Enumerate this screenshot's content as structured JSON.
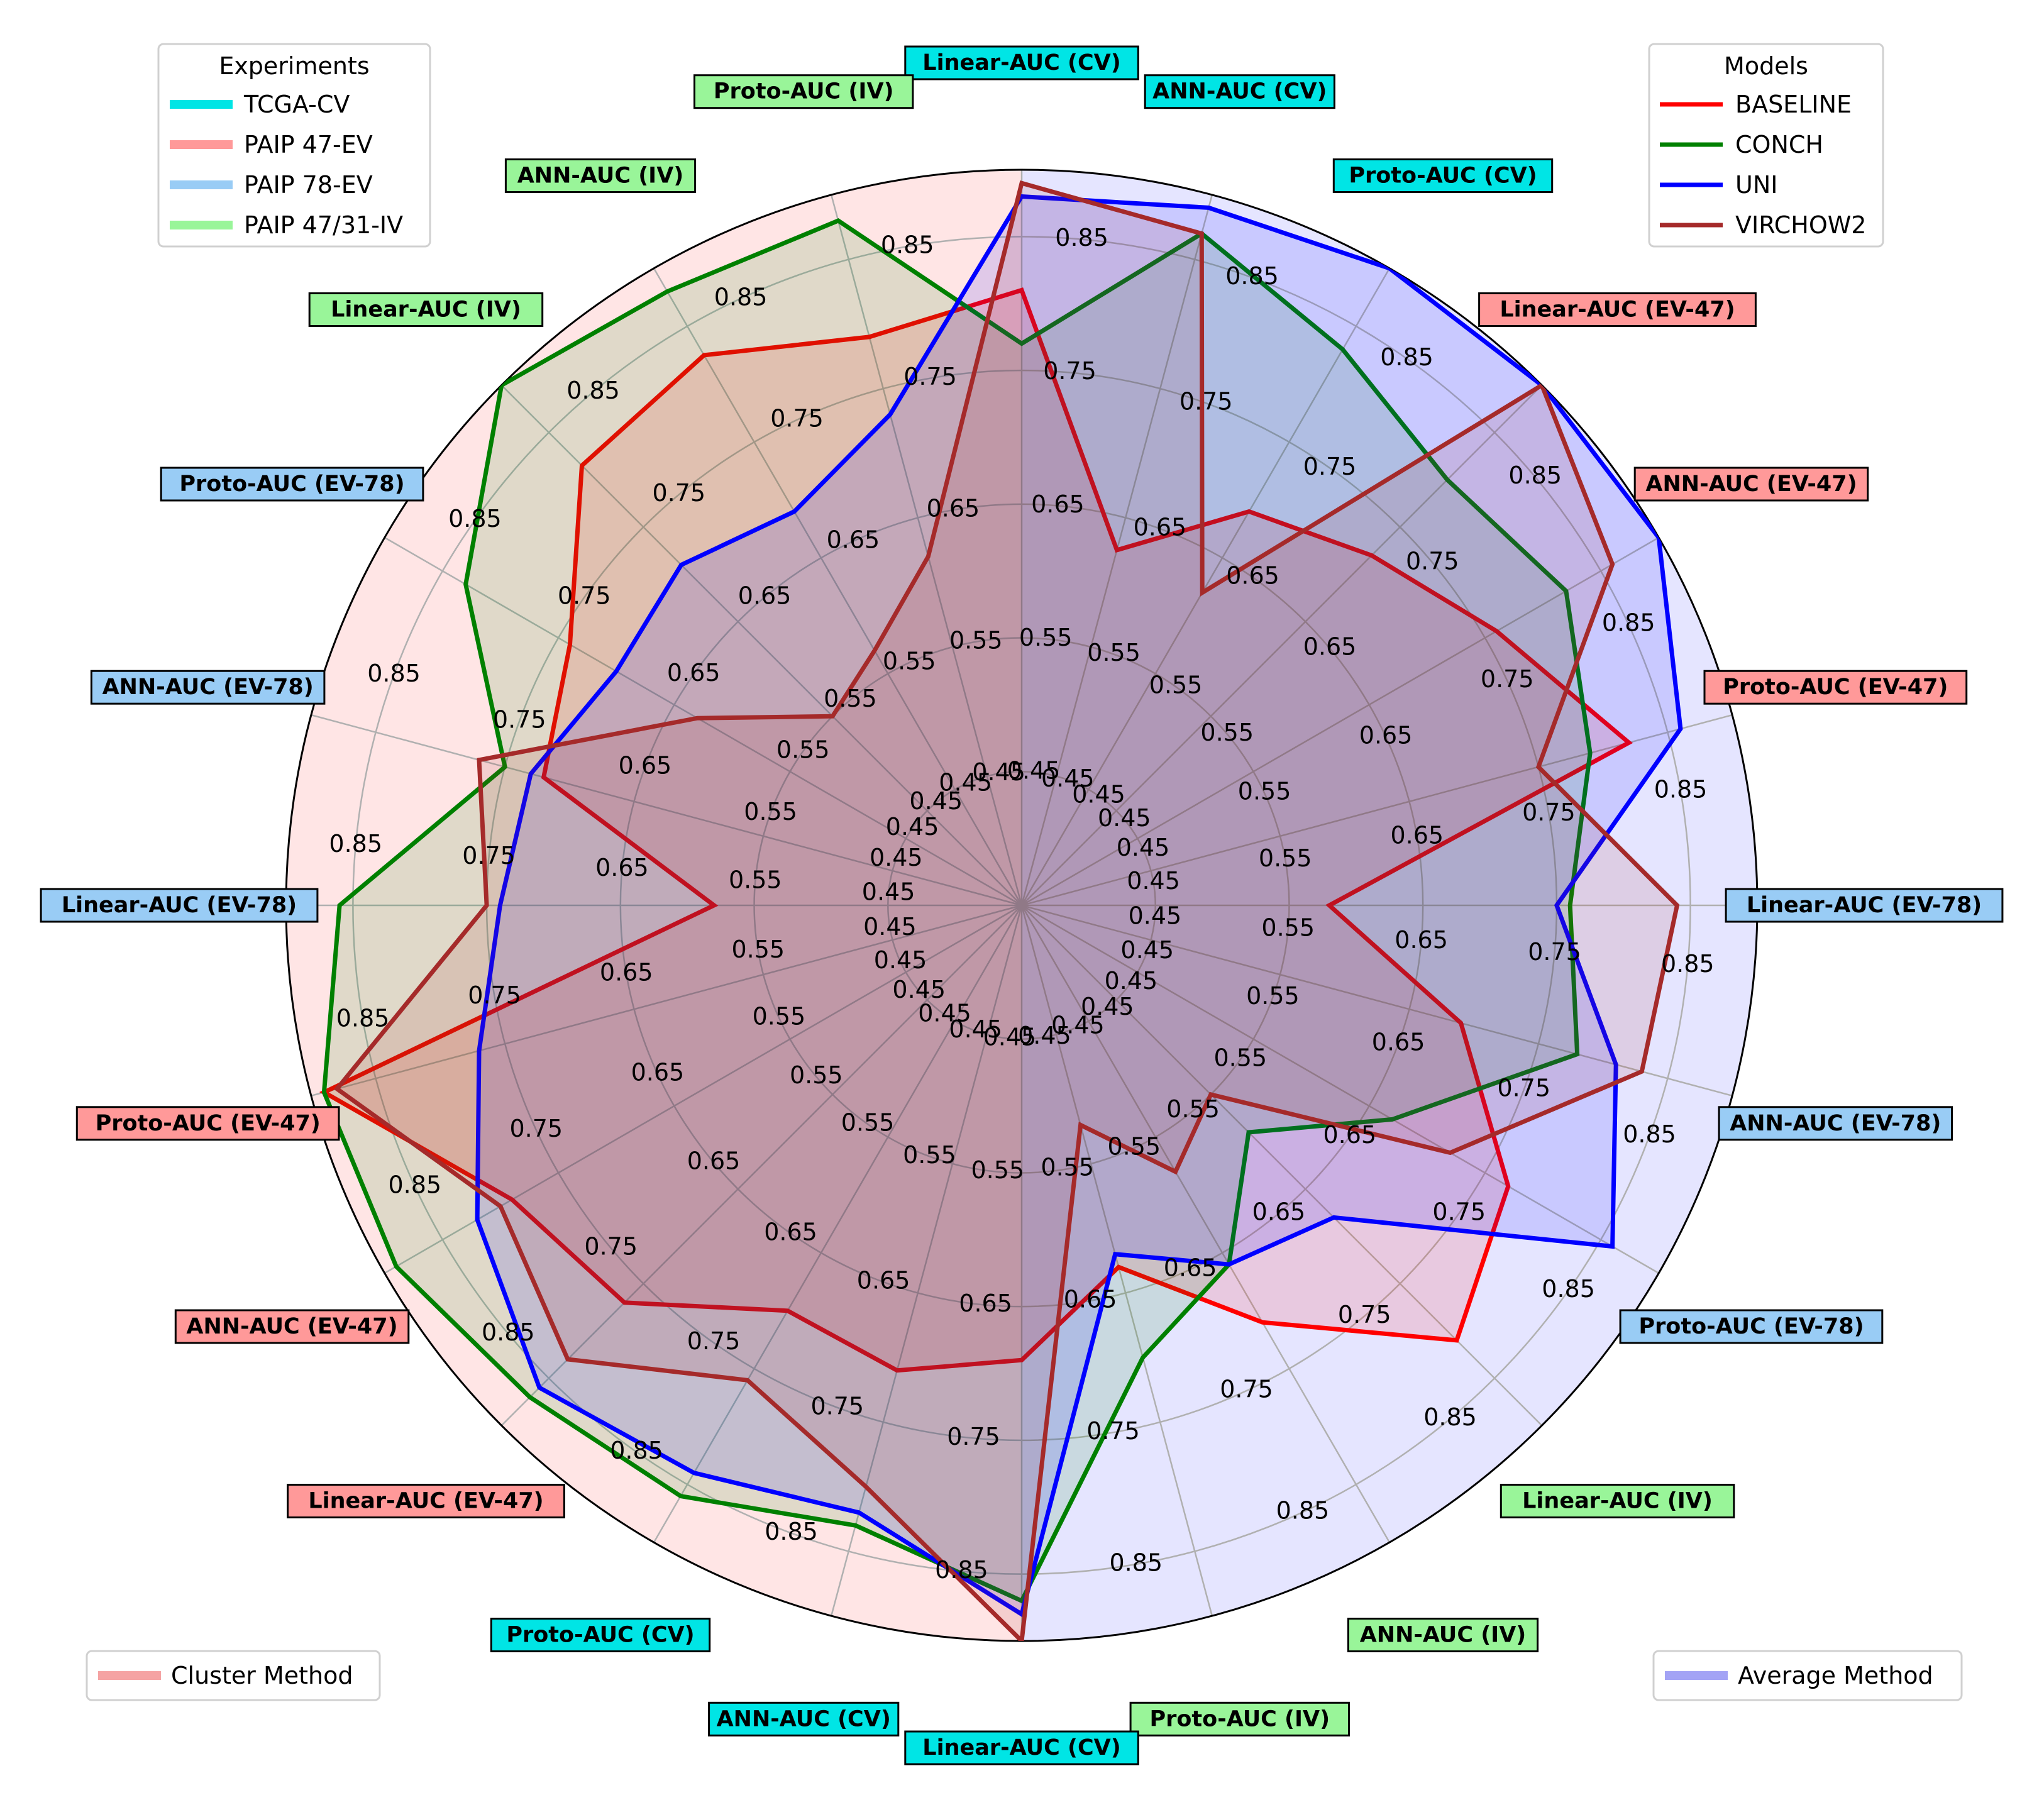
{
  "chart_data": {
    "type": "radar",
    "halves": [
      "Cluster Method",
      "Average Method"
    ],
    "axes": [
      {
        "label": "Linear-AUC (CV)",
        "exp": "TCGA-CV"
      },
      {
        "label": "ANN-AUC (CV)",
        "exp": "TCGA-CV"
      },
      {
        "label": "Proto-AUC (CV)",
        "exp": "TCGA-CV"
      },
      {
        "label": "Linear-AUC (EV-47)",
        "exp": "PAIP 47-EV"
      },
      {
        "label": "ANN-AUC (EV-47)",
        "exp": "PAIP 47-EV"
      },
      {
        "label": "Proto-AUC (EV-47)",
        "exp": "PAIP 47-EV"
      },
      {
        "label": "Linear-AUC (EV-78)",
        "exp": "PAIP 78-EV"
      },
      {
        "label": "ANN-AUC (EV-78)",
        "exp": "PAIP 78-EV"
      },
      {
        "label": "Proto-AUC (EV-78)",
        "exp": "PAIP 78-EV"
      },
      {
        "label": "Linear-AUC (IV)",
        "exp": "PAIP 47/31-IV"
      },
      {
        "label": "ANN-AUC (IV)",
        "exp": "PAIP 47/31-IV"
      },
      {
        "label": "Proto-AUC (IV)",
        "exp": "PAIP 47/31-IV"
      },
      {
        "label": "Linear-AUC (CV)",
        "exp": "TCGA-CV"
      },
      {
        "label": "ANN-AUC (CV)",
        "exp": "TCGA-CV"
      },
      {
        "label": "Proto-AUC (CV)",
        "exp": "TCGA-CV"
      },
      {
        "label": "Linear-AUC (EV-47)",
        "exp": "PAIP 47-EV"
      },
      {
        "label": "ANN-AUC (EV-47)",
        "exp": "PAIP 47-EV"
      },
      {
        "label": "Proto-AUC (EV-47)",
        "exp": "PAIP 47-EV"
      },
      {
        "label": "Linear-AUC (EV-78)",
        "exp": "PAIP 78-EV"
      },
      {
        "label": "ANN-AUC (EV-78)",
        "exp": "PAIP 78-EV"
      },
      {
        "label": "Proto-AUC (EV-78)",
        "exp": "PAIP 78-EV"
      },
      {
        "label": "Linear-AUC (IV)",
        "exp": "PAIP 47/31-IV"
      },
      {
        "label": "ANN-AUC (IV)",
        "exp": "PAIP 47/31-IV"
      },
      {
        "label": "Proto-AUC (IV)",
        "exp": "PAIP 47/31-IV"
      }
    ],
    "rmin": 0.35,
    "rmax": 0.9,
    "rticks": [
      "0.45",
      "0.55",
      "0.65",
      "0.75",
      "0.85"
    ],
    "grid": true,
    "series": [
      {
        "name": "BASELINE",
        "color": "#ff0000",
        "values": [
          0.81,
          0.625,
          0.69,
          0.72,
          0.76,
          0.82,
          0.58,
          0.69,
          0.77,
          0.81,
          0.71,
          0.63,
          0.69,
          0.71,
          0.7,
          0.77,
          0.79,
          0.89,
          0.58,
          0.72,
          0.74,
          0.815,
          0.825,
          0.79
        ]
      },
      {
        "name": "CONCH",
        "color": "#008000",
        "values": [
          0.77,
          0.87,
          0.83,
          0.8,
          0.82,
          0.79,
          0.76,
          0.78,
          0.67,
          0.59,
          0.66,
          0.7,
          0.87,
          0.83,
          0.86,
          0.87,
          0.89,
          0.89,
          0.86,
          0.75,
          0.83,
          0.9,
          0.88,
          0.88
        ]
      },
      {
        "name": "UNI",
        "color": "#0000ff",
        "values": [
          0.88,
          0.89,
          0.9,
          0.9,
          0.9,
          0.86,
          0.75,
          0.81,
          0.86,
          0.68,
          0.66,
          0.62,
          0.88,
          0.82,
          0.84,
          0.86,
          0.82,
          0.77,
          0.74,
          0.73,
          0.7,
          0.71,
          0.69,
          0.73
        ]
      },
      {
        "name": "VIRCHOW2",
        "color": "#a52a2a",
        "values": [
          0.89,
          0.87,
          0.62,
          0.9,
          0.86,
          0.75,
          0.84,
          0.83,
          0.72,
          0.55,
          0.58,
          0.52,
          0.9,
          0.8,
          0.76,
          0.83,
          0.8,
          0.88,
          0.75,
          0.77,
          0.63,
          0.55,
          0.57,
          0.62
        ]
      }
    ]
  },
  "legends": {
    "experiments": {
      "title": "Experiments",
      "items": [
        {
          "label": "TCGA-CV",
          "color": "#00e5e5"
        },
        {
          "label": "PAIP 47-EV",
          "color": "#ff9999"
        },
        {
          "label": "PAIP 78-EV",
          "color": "#99ccf5"
        },
        {
          "label": "PAIP 47/31-IV",
          "color": "#99f599"
        }
      ]
    },
    "models": {
      "title": "Models",
      "items": [
        {
          "label": "BASELINE",
          "color": "#ff0000"
        },
        {
          "label": "CONCH",
          "color": "#008000"
        },
        {
          "label": "UNI",
          "color": "#0000ff"
        },
        {
          "label": "VIRCHOW2",
          "color": "#a52a2a"
        }
      ]
    },
    "cluster": {
      "label": "Cluster Method",
      "color": "#f5a3a3"
    },
    "average": {
      "label": "Average Method",
      "color": "#a3a3f5"
    }
  },
  "colors": {
    "cluster_bg": "#ffe5e5",
    "average_bg": "#e5e5ff",
    "TCGA-CV": "#00e5e5",
    "PAIP 47-EV": "#ff9999",
    "PAIP 78-EV": "#99ccf5",
    "PAIP 47/31-IV": "#99f599"
  }
}
